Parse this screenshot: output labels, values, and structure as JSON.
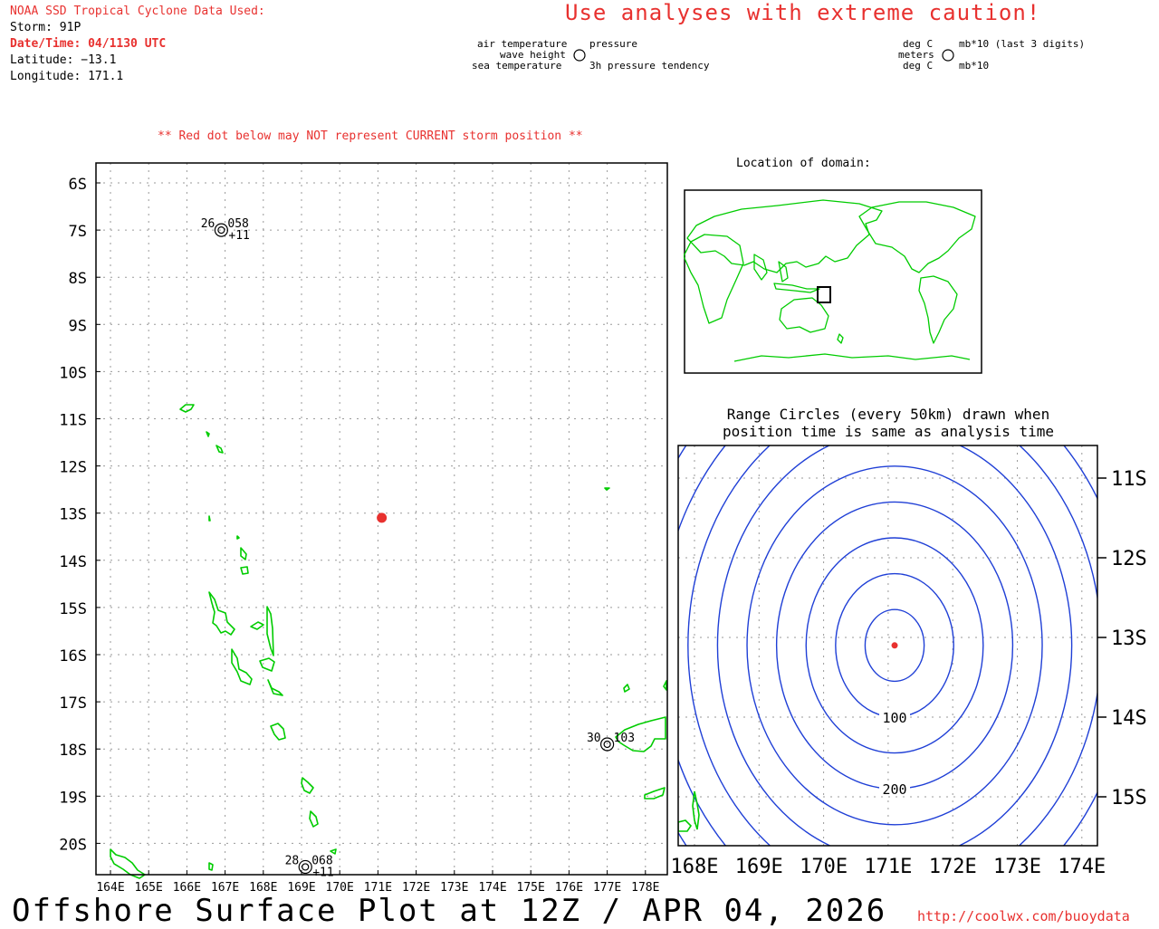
{
  "header": {
    "source_label": "NOAA SSD Tropical Cyclone Data Used:",
    "storm": "Storm: 91P",
    "datetime": "Date/Time: 04/1130 UTC",
    "latitude": "Latitude: −13.1",
    "longitude": "Longitude: 171.1",
    "caution": "Use analyses with extreme caution!",
    "red_dot_note": "** Red dot below may NOT represent CURRENT storm position **"
  },
  "legend": {
    "left": {
      "air_temperature": "air temperature",
      "wave_height": "wave height",
      "sea_temperature": "sea temperature",
      "pressure": "pressure",
      "pressure_tendency": "3h pressure tendency"
    },
    "right": {
      "deg_c_top": "deg C",
      "meters": "meters",
      "deg_c_bottom": "deg C",
      "mb_top": "mb*10 (last 3 digits)",
      "mb_bottom": "mb*10"
    }
  },
  "main_map": {
    "lat_labels": [
      "6S",
      "7S",
      "8S",
      "9S",
      "10S",
      "11S",
      "12S",
      "13S",
      "14S",
      "15S",
      "16S",
      "17S",
      "18S",
      "19S",
      "20S"
    ],
    "lon_labels": [
      "164E",
      "165E",
      "166E",
      "167E",
      "168E",
      "169E",
      "170E",
      "171E",
      "172E",
      "173E",
      "174E",
      "175E",
      "176E",
      "177E",
      "178E"
    ],
    "storm": {
      "lon": 171.1,
      "lat": -13.1,
      "color": "#e8312f"
    },
    "stations": [
      {
        "lon": 166.9,
        "lat": -7.0,
        "temp": "26",
        "pressure": "058",
        "tendency": "+11"
      },
      {
        "lon": 177.0,
        "lat": -17.9,
        "temp": "30",
        "pressure": "103",
        "tendency": ""
      },
      {
        "lon": 169.1,
        "lat": -20.5,
        "temp": "28",
        "pressure": "068",
        "tendency": "+11"
      }
    ],
    "coastline_color": "#00cc00",
    "grid_color": "#9a9a9a"
  },
  "inset": {
    "title": "Location of domain:"
  },
  "range_panel": {
    "title_line1": "Range Circles (every 50km) drawn when",
    "title_line2": "position time is same as analysis time",
    "lat_labels": [
      "11S",
      "12S",
      "13S",
      "14S",
      "15S"
    ],
    "lon_labels": [
      "168E",
      "169E",
      "170E",
      "171E",
      "172E",
      "173E",
      "174E"
    ],
    "ring_labels": [
      "100",
      "200"
    ],
    "ring_count": 9,
    "ring_color": "#1f3fd6"
  },
  "footer": {
    "title": "Offshore Surface Plot at 12Z / APR 04, 2026",
    "url": "http://coolwx.com/buoydata"
  }
}
